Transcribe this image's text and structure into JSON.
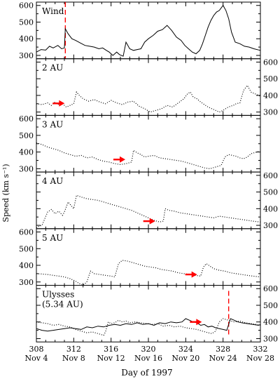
{
  "chart_data": {
    "type": "line",
    "title": "",
    "xlabel": "Day of 1997",
    "ylabel": "Speed (km s⁻¹)",
    "xlim": [
      308,
      332
    ],
    "ylim": [
      280,
      620
    ],
    "x_ticks": [
      308,
      312,
      316,
      320,
      324,
      328,
      332
    ],
    "x_date_labels": [
      "Nov 4",
      "Nov 8",
      "Nov 12",
      "Nov 16",
      "Nov 20",
      "Nov 24",
      "Nov 28"
    ],
    "panels": [
      {
        "label_lines": [
          "Wind"
        ],
        "y_ticks": [
          300,
          400,
          500,
          600
        ],
        "tick_side": "left",
        "arrow_at": null,
        "dashed_marker_x": 311.1,
        "series": [
          {
            "style": "solid",
            "x": [
              308,
              308.5,
              309,
              309.4,
              309.8,
              310.3,
              310.7,
              311.0,
              311.1,
              311.4,
              311.8,
              312.2,
              312.7,
              313.2,
              313.7,
              314.2,
              314.7,
              315.1,
              315.5,
              315.8,
              316.2,
              316.6,
              316.9,
              317.3,
              317.6,
              318.0,
              318.4,
              318.8,
              319.2,
              319.6,
              320.0,
              320.5,
              321.0,
              321.5,
              322.0,
              322.5,
              323.0,
              323.5,
              323.9,
              324.3,
              324.7,
              325.1,
              325.5,
              325.8,
              326.1,
              326.4,
              326.7,
              327.0,
              327.3,
              327.6,
              328.0,
              328.3,
              328.6,
              328.9,
              329.3,
              329.8,
              330.3,
              330.8,
              331.3,
              332.0
            ],
            "y": [
              320,
              335,
              332,
              355,
              345,
              360,
              340,
              345,
              460,
              430,
              400,
              390,
              375,
              360,
              355,
              350,
              340,
              345,
              330,
              320,
              300,
              320,
              305,
              295,
              380,
              340,
              330,
              335,
              340,
              380,
              400,
              420,
              445,
              455,
              480,
              450,
              410,
              390,
              360,
              340,
              320,
              310,
              330,
              370,
              420,
              470,
              510,
              540,
              560,
              570,
              600,
              570,
              520,
              440,
              380,
              370,
              355,
              350,
              340,
              330
            ]
          }
        ]
      },
      {
        "label_lines": [
          "2 AU"
        ],
        "y_ticks": [
          300,
          400,
          500,
          600
        ],
        "tick_side": "right",
        "arrow_at": [
          310.8,
          352
        ],
        "dashed_marker_x": null,
        "series": [
          {
            "style": "dotted",
            "x": [
              308,
              308.6,
              309.2,
              309.6,
              310.0,
              310.4,
              310.8,
              311.2,
              311.6,
              312.0,
              312.3,
              312.6,
              313.0,
              313.6,
              314.2,
              314.8,
              315.4,
              316.0,
              316.6,
              317.2,
              317.8,
              318.4,
              319.0,
              319.6,
              320.2,
              320.8,
              321.4,
              322.0,
              322.6,
              323.2,
              323.8,
              324.2,
              324.5,
              324.8,
              325.2,
              325.6,
              326.0,
              326.4,
              326.8,
              327.2,
              327.6,
              328.0,
              328.4,
              328.8,
              329.1,
              329.4,
              329.8,
              330.2,
              330.6,
              331.0,
              331.4,
              331.8,
              332.0
            ],
            "y": [
              350,
              345,
              355,
              340,
              360,
              345,
              350,
              330,
              340,
              350,
              420,
              400,
              380,
              365,
              375,
              360,
              350,
              370,
              355,
              345,
              360,
              365,
              335,
              320,
              300,
              310,
              320,
              340,
              330,
              355,
              380,
              410,
              420,
              390,
              380,
              360,
              345,
              330,
              320,
              310,
              300,
              310,
              325,
              335,
              340,
              350,
              355,
              430,
              460,
              420,
              410,
              400,
              395
            ]
          }
        ]
      },
      {
        "label_lines": [
          "3 AU"
        ],
        "y_ticks": [
          300,
          400,
          500,
          600
        ],
        "tick_side": "left",
        "arrow_at": [
          317.3,
          355
        ],
        "dashed_marker_x": null,
        "series": [
          {
            "style": "dotted",
            "x": [
              308,
              308.6,
              309.2,
              309.8,
              310.4,
              311.0,
              311.6,
              312.2,
              312.8,
              313.4,
              314.0,
              314.6,
              315.2,
              315.8,
              316.4,
              317.0,
              317.6,
              318.2,
              318.4,
              318.8,
              319.2,
              319.6,
              320.0,
              320.6,
              321.2,
              321.8,
              322.4,
              323.0,
              323.6,
              324.2,
              324.8,
              325.4,
              326.0,
              326.6,
              327.2,
              327.8,
              328.2,
              328.6,
              329.0,
              329.4,
              329.8,
              330.2,
              330.6,
              331.0,
              331.6,
              332.0
            ],
            "y": [
              455,
              445,
              430,
              420,
              410,
              395,
              385,
              375,
              380,
              365,
              370,
              355,
              345,
              340,
              330,
              325,
              330,
              340,
              410,
              395,
              385,
              370,
              375,
              380,
              365,
              360,
              355,
              350,
              345,
              335,
              325,
              315,
              305,
              300,
              310,
              320,
              370,
              385,
              380,
              375,
              365,
              360,
              370,
              390,
              400,
              405
            ]
          }
        ]
      },
      {
        "label_lines": [
          "4 AU"
        ],
        "y_ticks": [
          300,
          400,
          500,
          600
        ],
        "tick_side": "right",
        "arrow_at": [
          320.5,
          325
        ],
        "dashed_marker_x": null,
        "series": [
          {
            "style": "dotted",
            "x": [
              308,
              308.3,
              308.6,
              309.2,
              309.6,
              310.0,
              310.4,
              310.8,
              311.0,
              311.4,
              311.7,
              312.0,
              312.3,
              312.8,
              313.4,
              314.0,
              314.6,
              315.2,
              315.8,
              316.4,
              317.0,
              317.6,
              318.2,
              318.8,
              319.4,
              320.0,
              320.6,
              321.2,
              321.6,
              321.8,
              322.2,
              322.8,
              323.4,
              324.0,
              324.6,
              325.2,
              325.8,
              326.4,
              327.0,
              327.6,
              328.2,
              328.8,
              329.4,
              330.0,
              330.6,
              331.2,
              332.0
            ],
            "y": [
              285,
              295,
              300,
              380,
              395,
              370,
              385,
              360,
              380,
              440,
              420,
              400,
              480,
              470,
              460,
              455,
              450,
              440,
              430,
              420,
              410,
              400,
              390,
              375,
              360,
              345,
              330,
              320,
              325,
              400,
              390,
              385,
              375,
              370,
              365,
              360,
              355,
              350,
              345,
              355,
              350,
              345,
              340,
              335,
              330,
              325,
              320
            ]
          }
        ]
      },
      {
        "label_lines": [
          "5 AU"
        ],
        "y_ticks": [
          300,
          400,
          500,
          600
        ],
        "tick_side": "left",
        "arrow_at": [
          325.0,
          345
        ],
        "dashed_marker_x": null,
        "series": [
          {
            "style": "dotted",
            "x": [
              308,
              308.6,
              309.2,
              309.8,
              310.4,
              311.0,
              311.6,
              312.2,
              312.6,
              313.0,
              313.4,
              313.8,
              314.2,
              314.8,
              315.4,
              316.0,
              316.4,
              316.8,
              317.2,
              317.8,
              318.4,
              319.0,
              319.6,
              320.2,
              320.8,
              321.4,
              322.0,
              322.6,
              323.2,
              323.8,
              324.4,
              325.0,
              325.6,
              325.9,
              326.2,
              326.6,
              327.0,
              327.6,
              328.2,
              328.8,
              329.4,
              330.0,
              330.6,
              331.2,
              332.0
            ],
            "y": [
              350,
              348,
              345,
              340,
              335,
              330,
              320,
              305,
              290,
              280,
              300,
              365,
              350,
              345,
              340,
              335,
              330,
              410,
              430,
              425,
              415,
              405,
              395,
              390,
              385,
              375,
              370,
              365,
              355,
              350,
              345,
              340,
              335,
              390,
              410,
              395,
              380,
              370,
              365,
              355,
              350,
              345,
              340,
              335,
              330
            ]
          }
        ]
      },
      {
        "label_lines": [
          "Ulysses",
          "(5.34 AU)"
        ],
        "y_ticks": [
          300,
          400,
          500,
          600
        ],
        "tick_side": "right",
        "arrow_at": [
          325.5,
          400
        ],
        "dashed_marker_x": 328.6,
        "series": [
          {
            "style": "solid",
            "x": [
              308,
              308.6,
              309.2,
              309.8,
              310.4,
              311.0,
              311.6,
              312.2,
              312.8,
              313.4,
              314.0,
              314.6,
              315.2,
              315.8,
              316.4,
              317.0,
              317.6,
              318.2,
              318.8,
              319.4,
              320.0,
              320.6,
              321.2,
              321.8,
              322.4,
              323.0,
              323.6,
              324.0,
              324.4,
              324.8,
              325.2,
              325.6,
              326.0,
              326.4,
              326.8,
              327.2,
              327.6,
              328.0,
              328.4,
              328.8,
              329.2,
              329.6,
              330.0,
              330.6,
              331.2,
              331.8,
              332.0
            ],
            "y": [
              360,
              350,
              345,
              350,
              355,
              360,
              365,
              360,
              355,
              370,
              365,
              375,
              370,
              380,
              385,
              380,
              390,
              385,
              395,
              385,
              390,
              380,
              395,
              390,
              400,
              395,
              400,
              420,
              410,
              400,
              395,
              380,
              385,
              370,
              375,
              365,
              360,
              355,
              350,
              420,
              410,
              400,
              395,
              390,
              385,
              380,
              385
            ]
          },
          {
            "style": "dotted",
            "x": [
              308,
              308.6,
              309.2,
              309.8,
              310.4,
              311.0,
              311.6,
              312.2,
              312.8,
              313.4,
              314.0,
              314.6,
              315.2,
              315.4,
              315.7,
              316.0,
              316.4,
              316.8,
              317.2,
              317.6,
              318.0,
              318.6,
              319.2,
              319.8,
              320.4,
              321.0,
              321.6,
              322.2,
              322.8,
              323.4,
              324.0,
              324.6,
              325.2,
              325.8,
              326.4,
              326.8,
              327.2,
              327.6,
              328.0,
              328.6,
              329.2,
              329.8,
              330.4,
              331.0,
              331.6,
              332.0
            ],
            "y": [
              400,
              395,
              390,
              380,
              385,
              375,
              370,
              355,
              345,
              335,
              340,
              330,
              320,
              340,
              400,
              390,
              395,
              410,
              400,
              405,
              395,
              400,
              395,
              390,
              385,
              390,
              375,
              380,
              370,
              375,
              365,
              360,
              355,
              345,
              335,
              330,
              345,
              400,
              420,
              410,
              400,
              405,
              395,
              390,
              385,
              380
            ]
          }
        ]
      }
    ]
  }
}
